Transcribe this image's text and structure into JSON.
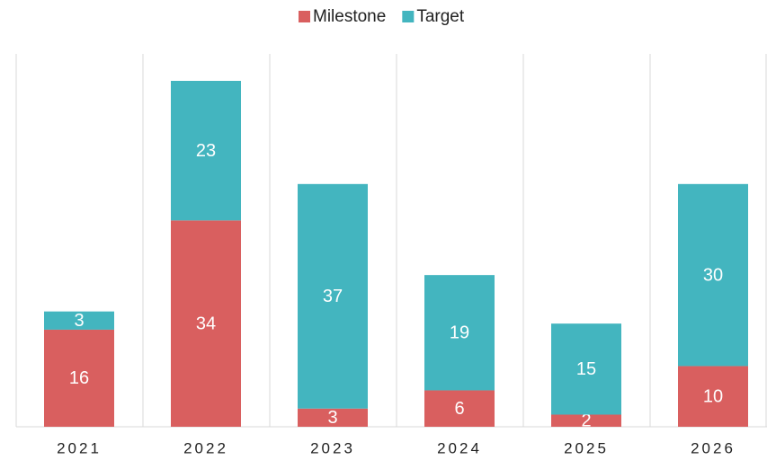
{
  "chart_data": {
    "type": "stacked_bar",
    "categories": [
      "2021",
      "2022",
      "2023",
      "2024",
      "2025",
      "2026"
    ],
    "series": [
      {
        "name": "Milestone",
        "color": "#d95f5f",
        "values": [
          16,
          34,
          3,
          6,
          2,
          10
        ]
      },
      {
        "name": "Target",
        "color": "#43b5bf",
        "values": [
          3,
          23,
          37,
          19,
          15,
          30
        ]
      }
    ],
    "legend": "top"
  }
}
